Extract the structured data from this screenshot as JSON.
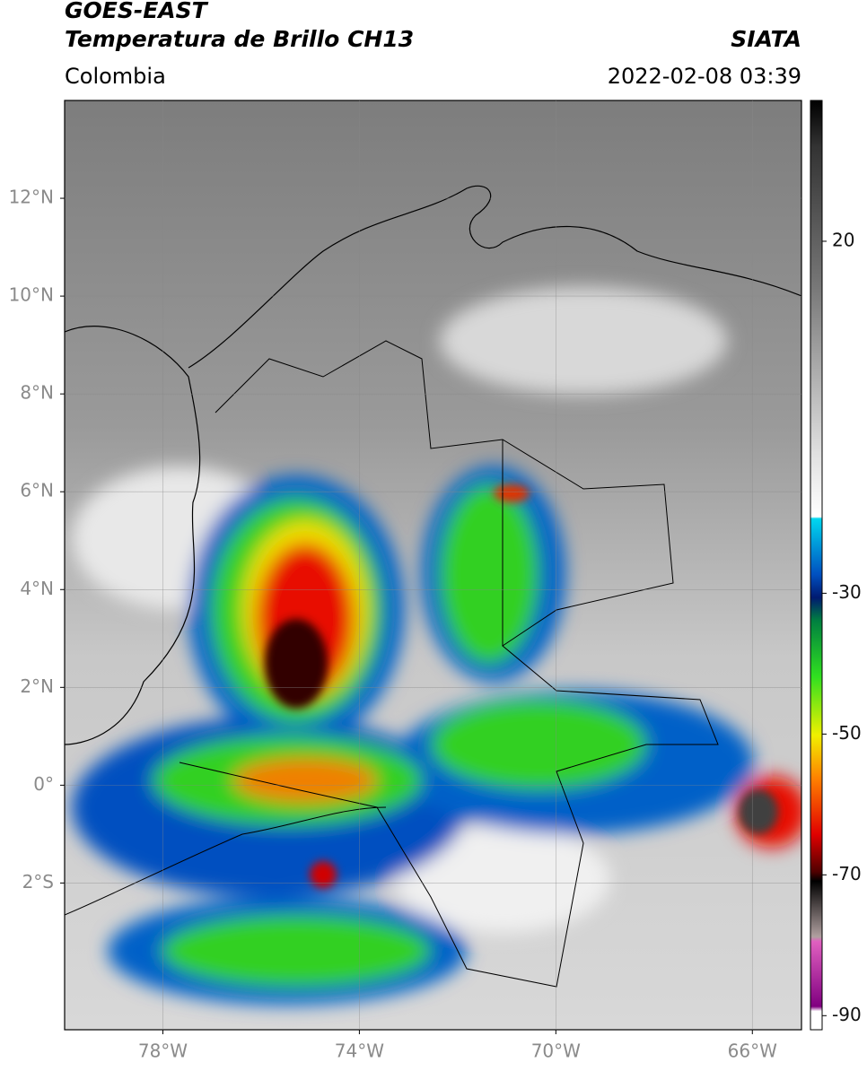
{
  "header": {
    "title": "GOES-EAST",
    "subtitle": "Temperatura de Brillo CH13",
    "source": "SIATA",
    "region": "Colombia",
    "datetime": "2022-02-08 03:39"
  },
  "map": {
    "lon_range": [
      -80,
      -65
    ],
    "lat_range": [
      -5,
      14
    ],
    "lon_ticks": [
      {
        "value": -78,
        "label": "78°W"
      },
      {
        "value": -74,
        "label": "74°W"
      },
      {
        "value": -70,
        "label": "70°W"
      },
      {
        "value": -66,
        "label": "66°W"
      }
    ],
    "lat_ticks": [
      {
        "value": 12,
        "label": "12°N"
      },
      {
        "value": 10,
        "label": "10°N"
      },
      {
        "value": 8,
        "label": "8°N"
      },
      {
        "value": 6,
        "label": "6°N"
      },
      {
        "value": 4,
        "label": "4°N"
      },
      {
        "value": 2,
        "label": "2°N"
      },
      {
        "value": 0,
        "label": "0°"
      },
      {
        "value": -2,
        "label": "2°S"
      }
    ]
  },
  "colorbar": {
    "range": [
      -92,
      40
    ],
    "ticks": [
      20,
      -30,
      -50,
      -70,
      -90
    ]
  }
}
